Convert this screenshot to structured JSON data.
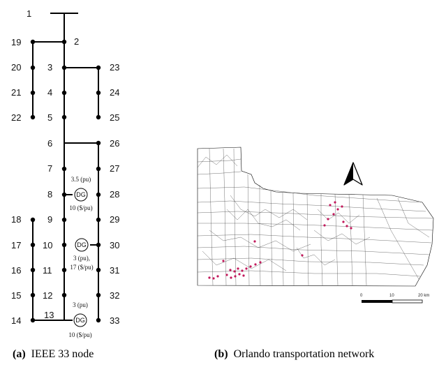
{
  "panel_a": {
    "caption_tag": "(a)",
    "caption_text": "IEEE 33 node",
    "nodes": [
      "1",
      "2",
      "3",
      "4",
      "5",
      "6",
      "7",
      "8",
      "9",
      "10",
      "11",
      "12",
      "13",
      "14",
      "15",
      "16",
      "17",
      "18",
      "19",
      "20",
      "21",
      "22",
      "23",
      "24",
      "25",
      "26",
      "27",
      "28",
      "29",
      "30",
      "31",
      "32",
      "33"
    ],
    "dg_label": "DG",
    "dg_notes": {
      "dg8_top": "3.5 (pu)",
      "dg8_bottom": "10 ($/pu)",
      "dg30_line1": "3 (pu),",
      "dg30_line2": "17 ($/pu)",
      "dg13_top": "3 (pu)",
      "dg13_bottom": "10 ($/pu)"
    }
  },
  "panel_b": {
    "caption_tag": "(b)",
    "caption_text": "Orlando transportation network",
    "scale": {
      "start": "0",
      "mid": "10",
      "end": "20 km"
    },
    "north_arrow": "north-arrow-icon",
    "station_color": "#c2185b"
  }
}
